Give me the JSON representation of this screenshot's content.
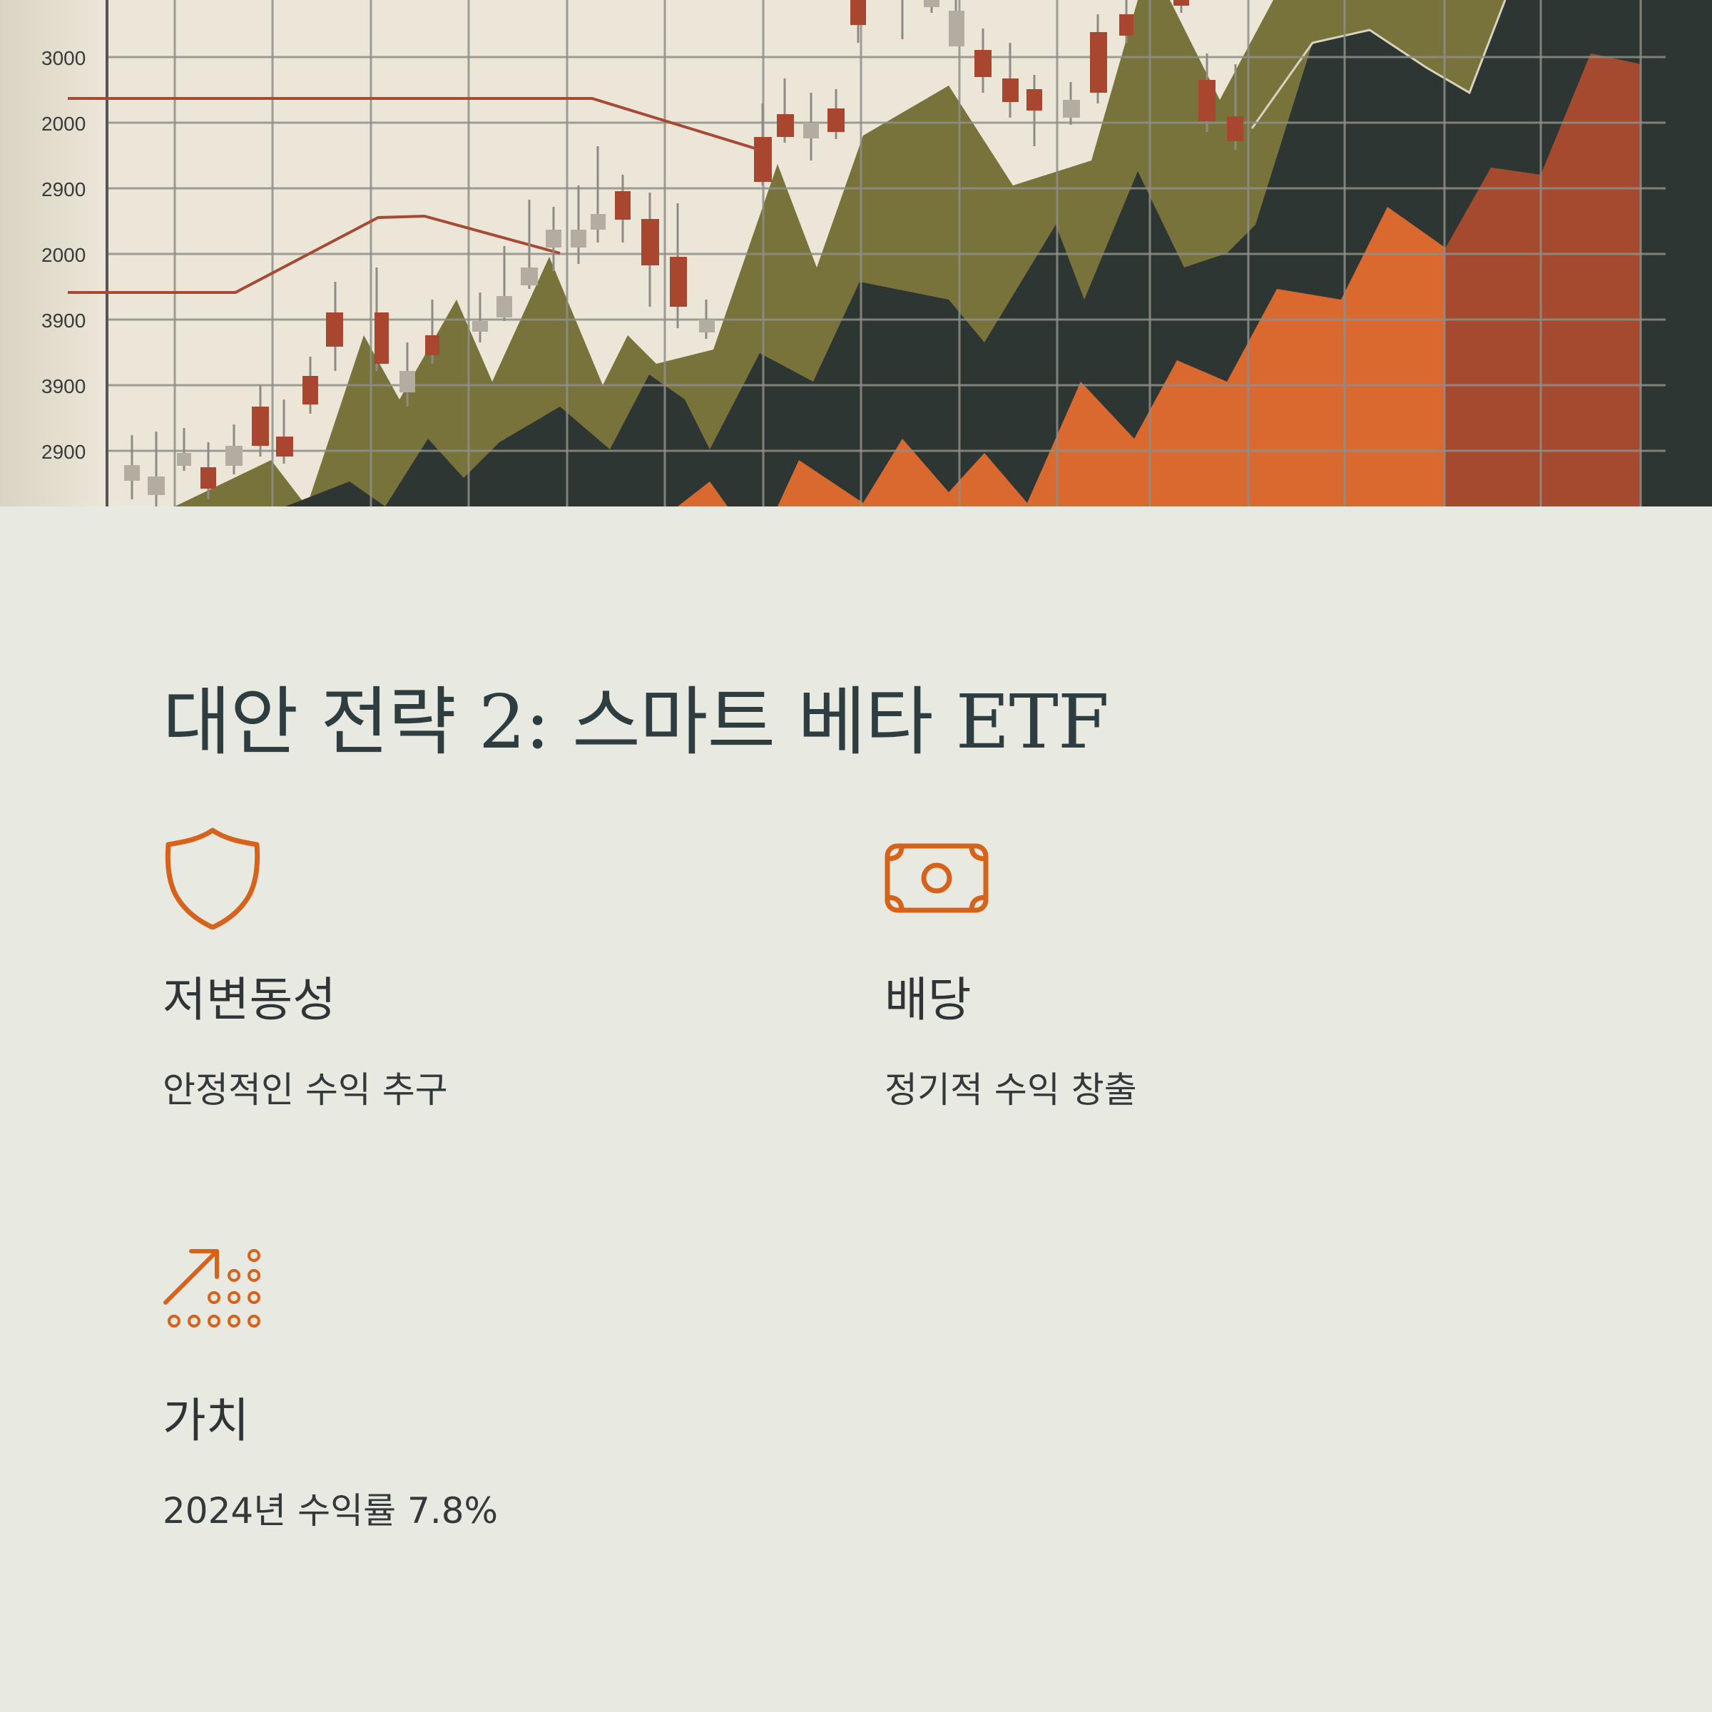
{
  "hero": {
    "y_axis_labels": [
      "3000",
      "2000",
      "2900",
      "2000",
      "3900",
      "3900",
      "2900"
    ]
  },
  "title": "대안 전략 2: 스마트 베타 ETF",
  "features": [
    {
      "icon": "shield-icon",
      "title": "저변동성",
      "description": "안정적인 수익 추구"
    },
    {
      "icon": "banknote-icon",
      "title": "배당",
      "description": "정기적 수익 창출"
    },
    {
      "icon": "growth-dots-icon",
      "title": "가치",
      "description": "2024년 수익률 7.8%"
    }
  ],
  "colors": {
    "background": "#e8e9e1",
    "accent": "#d5631c",
    "title": "#2e3d3f",
    "chart_olive": "#77733b",
    "chart_dark": "#2e3633",
    "chart_orange": "#d9692f",
    "chart_rust": "#a54a2e"
  }
}
